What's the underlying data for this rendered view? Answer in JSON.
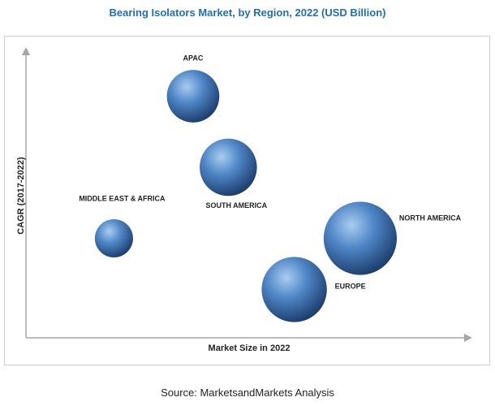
{
  "chart_data": {
    "type": "bubble",
    "title": "Bearing Isolators Market, by Region, 2022 (USD Billion)",
    "xlabel": "Market Size in 2022",
    "ylabel": "CAGR (2017-2022)",
    "xlim": [
      0,
      100
    ],
    "ylim": [
      0,
      100
    ],
    "grid": false,
    "legend": "none",
    "points": [
      {
        "label": "APAC",
        "x": 38,
        "y": 85,
        "size": 33
      },
      {
        "label": "SOUTH AMERICA",
        "x": 46,
        "y": 60,
        "size": 36
      },
      {
        "label": "MIDDLE EAST & AFRICA",
        "x": 20,
        "y": 35,
        "size": 24
      },
      {
        "label": "NORTH AMERICA",
        "x": 76,
        "y": 35,
        "size": 46
      },
      {
        "label": "EUROPE",
        "x": 61,
        "y": 17,
        "size": 41
      }
    ]
  },
  "source": "Source: MarketsandMarkets Analysis",
  "colors": {
    "title": "#1f6fb6",
    "bubble_light": "#a9cdf0",
    "bubble_mid": "#4f86c6",
    "bubble_dark": "#1c3e6e",
    "axis": "#a6a6a6"
  }
}
